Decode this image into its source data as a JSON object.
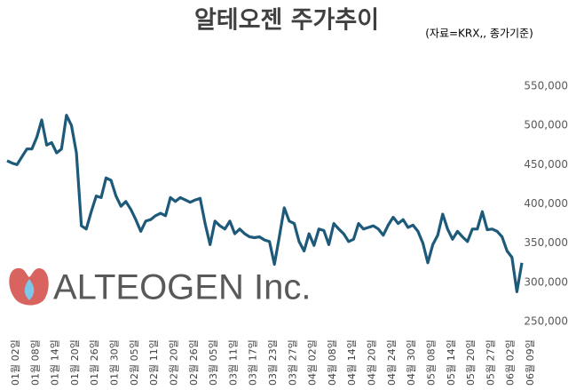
{
  "chart_data": {
    "type": "line",
    "title": "알테오젠 주가추이",
    "subtitle": "(자료=KRX,, 종가기준)",
    "logo_text": "ALTEOGEN Inc.",
    "categories": [
      "01월 02일",
      null,
      null,
      null,
      "01월 08일",
      null,
      null,
      null,
      "01월 14일",
      null,
      null,
      null,
      "01월 20일",
      null,
      null,
      null,
      "01월 26일",
      null,
      null,
      null,
      "01월 30일",
      null,
      null,
      null,
      "02월 05일",
      null,
      null,
      null,
      "02월 11일",
      null,
      null,
      null,
      "02월 20일",
      null,
      null,
      null,
      "02월 26일",
      null,
      null,
      null,
      "03월 05일",
      null,
      null,
      null,
      "03월 11일",
      null,
      null,
      null,
      "03월 17일",
      null,
      null,
      null,
      "03월 23일",
      null,
      null,
      null,
      "03월 27일",
      null,
      null,
      null,
      "04월 02일",
      null,
      null,
      null,
      "04월 08일",
      null,
      null,
      null,
      "04월 14일",
      null,
      null,
      null,
      "04월 20일",
      null,
      null,
      null,
      "04월 24일",
      null,
      null,
      null,
      "04월 30일",
      null,
      null,
      null,
      "05월 08일",
      null,
      null,
      null,
      "05월 14일",
      null,
      null,
      null,
      "05월 20일",
      null,
      null,
      null,
      "05월 27일",
      null,
      null,
      null,
      "06월 02일",
      null,
      null,
      null,
      "06월 09일"
    ],
    "series": [
      {
        "name": "종가",
        "color": "#1d5a7a",
        "values": [
          455000,
          452000,
          450000,
          460000,
          470000,
          470000,
          485000,
          507000,
          475000,
          478000,
          465000,
          470000,
          513000,
          500000,
          465000,
          372000,
          368000,
          390000,
          410000,
          408000,
          433000,
          430000,
          410000,
          397000,
          403000,
          393000,
          380000,
          365000,
          378000,
          380000,
          385000,
          388000,
          385000,
          408000,
          403000,
          408000,
          405000,
          402000,
          405000,
          407000,
          375000,
          348000,
          378000,
          372000,
          368000,
          378000,
          362000,
          368000,
          362000,
          358000,
          357000,
          358000,
          354000,
          352000,
          323000,
          358000,
          395000,
          378000,
          375000,
          352000,
          340000,
          362000,
          347000,
          368000,
          366000,
          348000,
          375000,
          368000,
          362000,
          352000,
          355000,
          375000,
          368000,
          370000,
          372000,
          368000,
          360000,
          373000,
          383000,
          375000,
          380000,
          370000,
          373000,
          365000,
          350000,
          325000,
          348000,
          360000,
          387000,
          368000,
          355000,
          365000,
          358000,
          352000,
          368000,
          368000,
          390000,
          367000,
          368000,
          365000,
          358000,
          340000,
          332000,
          288000,
          325000
        ]
      }
    ],
    "ylim": [
      250000,
      550000
    ],
    "yticks": [
      {
        "value": 250000,
        "label": "250,000"
      },
      {
        "value": 300000,
        "label": "300,000"
      },
      {
        "value": 350000,
        "label": "350,000"
      },
      {
        "value": 400000,
        "label": "400,000"
      },
      {
        "value": 450000,
        "label": "450,000"
      },
      {
        "value": 500000,
        "label": "500,000"
      },
      {
        "value": 550000,
        "label": "550,000"
      }
    ],
    "grid": false
  }
}
